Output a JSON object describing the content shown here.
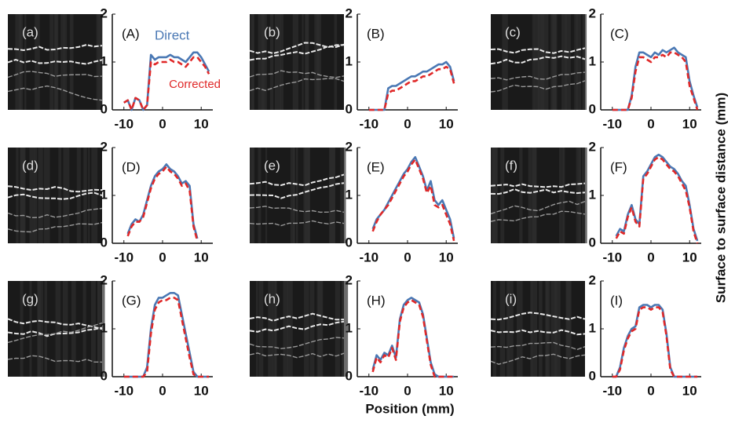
{
  "figure": {
    "x_label": "Position (mm)",
    "y_label": "Surface to surface distance (mm)",
    "images": [
      "(a)",
      "(b)",
      "(c)",
      "(d)",
      "(e)",
      "(f)",
      "(g)",
      "(h)",
      "(i)"
    ]
  },
  "chart_data": [
    {
      "type": "line",
      "label": "(A)",
      "legend": true,
      "xlim": [
        -13,
        13
      ],
      "ylim": [
        0,
        2
      ],
      "xticks": [
        -10,
        0,
        10
      ],
      "yticks": [
        0,
        1,
        2
      ],
      "x": [
        -10,
        -9,
        -8,
        -7,
        -6,
        -5,
        -4,
        -3,
        -2,
        -1,
        0,
        1,
        2,
        3,
        4,
        5,
        6,
        7,
        8,
        9,
        10,
        11,
        12
      ],
      "series": [
        {
          "name": "Direct",
          "color": "#4a78b4",
          "values": [
            0.15,
            0.2,
            0,
            0.25,
            0.2,
            0,
            0.1,
            1.15,
            1.05,
            1.1,
            1.1,
            1.1,
            1.15,
            1.1,
            1.1,
            1.05,
            1.0,
            1.1,
            1.2,
            1.2,
            1.1,
            0.95,
            0.8
          ]
        },
        {
          "name": "Corrected",
          "color": "#e02828",
          "values": [
            0.15,
            0.2,
            0,
            0.25,
            0.2,
            0,
            0.1,
            1.0,
            0.95,
            1.0,
            1.0,
            1.0,
            1.05,
            1.0,
            1.0,
            0.95,
            0.9,
            1.0,
            1.1,
            1.1,
            1.0,
            0.9,
            0.75
          ]
        }
      ]
    },
    {
      "type": "line",
      "label": "(B)",
      "xlim": [
        -13,
        13
      ],
      "ylim": [
        0,
        2
      ],
      "xticks": [
        -10,
        0,
        10
      ],
      "yticks": [
        0,
        1,
        2
      ],
      "x": [
        -10,
        -9,
        -8,
        -7,
        -6,
        -5,
        -4,
        -3,
        -2,
        -1,
        0,
        1,
        2,
        3,
        4,
        5,
        6,
        7,
        8,
        9,
        10,
        11,
        12
      ],
      "series": [
        {
          "name": "Direct",
          "color": "#4a78b4",
          "values": [
            0,
            0,
            0,
            0,
            0,
            0.45,
            0.5,
            0.5,
            0.55,
            0.6,
            0.65,
            0.7,
            0.7,
            0.75,
            0.8,
            0.8,
            0.85,
            0.9,
            0.95,
            0.95,
            1.0,
            0.9,
            0.6
          ]
        },
        {
          "name": "Corrected",
          "color": "#e02828",
          "values": [
            0,
            0,
            0,
            0,
            0,
            0.35,
            0.4,
            0.4,
            0.45,
            0.5,
            0.55,
            0.6,
            0.6,
            0.65,
            0.7,
            0.7,
            0.75,
            0.8,
            0.85,
            0.85,
            0.9,
            0.85,
            0.55
          ]
        }
      ]
    },
    {
      "type": "line",
      "label": "(C)",
      "xlim": [
        -13,
        13
      ],
      "ylim": [
        0,
        2
      ],
      "xticks": [
        -10,
        0,
        10
      ],
      "yticks": [
        0,
        1,
        2
      ],
      "x": [
        -10,
        -9,
        -8,
        -7,
        -6,
        -5,
        -4,
        -3,
        -2,
        -1,
        0,
        1,
        2,
        3,
        4,
        5,
        6,
        7,
        8,
        9,
        10,
        11,
        12
      ],
      "series": [
        {
          "name": "Direct",
          "color": "#4a78b4",
          "values": [
            0,
            0,
            0,
            0,
            0,
            0.3,
            0.9,
            1.2,
            1.2,
            1.15,
            1.1,
            1.2,
            1.15,
            1.25,
            1.2,
            1.25,
            1.3,
            1.2,
            1.15,
            1.1,
            0.6,
            0.3,
            0.05
          ]
        },
        {
          "name": "Corrected",
          "color": "#e02828",
          "values": [
            0,
            0,
            0,
            0,
            0,
            0.25,
            0.8,
            1.1,
            1.1,
            1.05,
            1.0,
            1.1,
            1.1,
            1.15,
            1.1,
            1.2,
            1.2,
            1.15,
            1.1,
            1.0,
            0.5,
            0.25,
            0
          ]
        }
      ]
    },
    {
      "type": "line",
      "label": "(D)",
      "xlim": [
        -13,
        13
      ],
      "ylim": [
        0,
        2
      ],
      "xticks": [
        -10,
        0,
        10
      ],
      "yticks": [
        0,
        1,
        2
      ],
      "x": [
        -10,
        -9,
        -8,
        -7,
        -6,
        -5,
        -4,
        -3,
        -2,
        -1,
        0,
        1,
        2,
        3,
        4,
        5,
        6,
        7,
        8,
        9,
        10,
        11,
        12
      ],
      "series": [
        {
          "name": "Direct",
          "color": "#4a78b4",
          "values": [
            null,
            0.2,
            0.4,
            0.5,
            0.45,
            0.6,
            0.9,
            1.2,
            1.4,
            1.5,
            1.55,
            1.65,
            1.55,
            1.5,
            1.4,
            1.25,
            1.3,
            1.2,
            0.4,
            0.1,
            null,
            null,
            null
          ]
        },
        {
          "name": "Corrected",
          "color": "#e02828",
          "values": [
            null,
            0.15,
            0.35,
            0.45,
            0.45,
            0.55,
            0.85,
            1.15,
            1.35,
            1.45,
            1.5,
            1.6,
            1.5,
            1.45,
            1.35,
            1.2,
            1.25,
            1.1,
            0.35,
            0.05,
            null,
            null,
            null
          ]
        }
      ]
    },
    {
      "type": "line",
      "label": "(E)",
      "xlim": [
        -13,
        13
      ],
      "ylim": [
        0,
        2
      ],
      "xticks": [
        -10,
        0,
        10
      ],
      "yticks": [
        0,
        1,
        2
      ],
      "x": [
        -10,
        -9,
        -8,
        -7,
        -6,
        -5,
        -4,
        -3,
        -2,
        -1,
        0,
        1,
        2,
        3,
        4,
        5,
        6,
        7,
        8,
        9,
        10,
        11,
        12
      ],
      "series": [
        {
          "name": "Direct",
          "color": "#4a78b4",
          "values": [
            null,
            0.3,
            0.5,
            0.6,
            0.7,
            0.85,
            1.0,
            1.15,
            1.3,
            1.45,
            1.55,
            1.7,
            1.8,
            1.6,
            1.4,
            1.1,
            1.3,
            0.9,
            0.8,
            0.9,
            0.7,
            0.5,
            0.1
          ]
        },
        {
          "name": "Corrected",
          "color": "#e02828",
          "values": [
            null,
            0.25,
            0.45,
            0.6,
            0.7,
            0.8,
            0.95,
            1.1,
            1.25,
            1.4,
            1.5,
            1.65,
            1.75,
            1.55,
            1.35,
            1.05,
            1.2,
            0.8,
            0.75,
            0.8,
            0.6,
            0.4,
            0.05
          ]
        }
      ]
    },
    {
      "type": "line",
      "label": "(F)",
      "xlim": [
        -13,
        13
      ],
      "ylim": [
        0,
        2
      ],
      "xticks": [
        -10,
        0,
        10
      ],
      "yticks": [
        0,
        1,
        2
      ],
      "x": [
        -10,
        -9,
        -8,
        -7,
        -6,
        -5,
        -4,
        -3,
        -2,
        -1,
        0,
        1,
        2,
        3,
        4,
        5,
        6,
        7,
        8,
        9,
        10,
        11,
        12
      ],
      "series": [
        {
          "name": "Direct",
          "color": "#4a78b4",
          "values": [
            null,
            0.15,
            0.3,
            0.25,
            0.6,
            0.8,
            0.5,
            0.4,
            1.4,
            1.5,
            1.65,
            1.8,
            1.85,
            1.8,
            1.7,
            1.6,
            1.55,
            1.45,
            1.3,
            1.2,
            0.8,
            0.3,
            0.05
          ]
        },
        {
          "name": "Corrected",
          "color": "#e02828",
          "values": [
            null,
            0.1,
            0.25,
            0.2,
            0.55,
            0.75,
            0.45,
            0.35,
            1.35,
            1.45,
            1.6,
            1.75,
            1.8,
            1.75,
            1.65,
            1.55,
            1.5,
            1.4,
            1.25,
            1.1,
            0.75,
            0.25,
            0
          ]
        }
      ]
    },
    {
      "type": "line",
      "label": "(G)",
      "xlim": [
        -13,
        13
      ],
      "ylim": [
        0,
        2
      ],
      "xticks": [
        -10,
        0,
        10
      ],
      "yticks": [
        0,
        1,
        2
      ],
      "x": [
        -10,
        -9,
        -8,
        -7,
        -6,
        -5,
        -4,
        -3,
        -2,
        -1,
        0,
        1,
        2,
        3,
        4,
        5,
        6,
        7,
        8,
        9,
        10,
        11,
        12
      ],
      "series": [
        {
          "name": "Direct",
          "color": "#4a78b4",
          "values": [
            0,
            0,
            0,
            0,
            0,
            0,
            0.2,
            1.0,
            1.5,
            1.65,
            1.65,
            1.7,
            1.75,
            1.75,
            1.7,
            1.3,
            0.9,
            0.5,
            0.1,
            0,
            0,
            0,
            0
          ]
        },
        {
          "name": "Corrected",
          "color": "#e02828",
          "values": [
            0,
            0,
            0,
            0,
            0,
            0,
            0.1,
            0.9,
            1.4,
            1.55,
            1.6,
            1.6,
            1.65,
            1.65,
            1.6,
            1.2,
            0.8,
            0.4,
            0.05,
            0,
            0,
            0,
            0
          ]
        }
      ]
    },
    {
      "type": "line",
      "label": "(H)",
      "xlim": [
        -13,
        13
      ],
      "ylim": [
        0,
        2
      ],
      "xticks": [
        -10,
        0,
        10
      ],
      "yticks": [
        0,
        1,
        2
      ],
      "x": [
        -10,
        -9,
        -8,
        -7,
        -6,
        -5,
        -4,
        -3,
        -2,
        -1,
        0,
        1,
        2,
        3,
        4,
        5,
        6,
        7,
        8,
        9,
        10,
        11,
        12
      ],
      "series": [
        {
          "name": "Direct",
          "color": "#4a78b4",
          "values": [
            null,
            0.15,
            0.45,
            0.35,
            0.5,
            0.45,
            0.65,
            0.4,
            1.2,
            1.5,
            1.6,
            1.65,
            1.6,
            1.55,
            1.3,
            0.8,
            0.3,
            0.05,
            0,
            0,
            0,
            0,
            0
          ]
        },
        {
          "name": "Corrected",
          "color": "#e02828",
          "values": [
            null,
            0.1,
            0.4,
            0.3,
            0.45,
            0.4,
            0.6,
            0.35,
            1.15,
            1.45,
            1.55,
            1.6,
            1.55,
            1.5,
            1.25,
            0.75,
            0.25,
            0,
            0,
            0,
            0,
            0,
            0
          ]
        }
      ]
    },
    {
      "type": "line",
      "label": "(I)",
      "xlim": [
        -13,
        13
      ],
      "ylim": [
        0,
        2
      ],
      "xticks": [
        -10,
        0,
        10
      ],
      "yticks": [
        0,
        1,
        2
      ],
      "x": [
        -10,
        -9,
        -8,
        -7,
        -6,
        -5,
        -4,
        -3,
        -2,
        -1,
        0,
        1,
        2,
        3,
        4,
        5,
        6,
        7,
        8,
        9,
        10,
        11,
        12
      ],
      "series": [
        {
          "name": "Direct",
          "color": "#4a78b4",
          "values": [
            0,
            0,
            0.2,
            0.6,
            0.85,
            1.0,
            1.05,
            1.45,
            1.5,
            1.5,
            1.45,
            1.5,
            1.5,
            1.4,
            0.9,
            0.2,
            0,
            0,
            0,
            0,
            0,
            0,
            0
          ]
        },
        {
          "name": "Corrected",
          "color": "#e02828",
          "values": [
            0,
            0,
            0.15,
            0.55,
            0.8,
            0.95,
            1.0,
            1.4,
            1.45,
            1.45,
            1.4,
            1.45,
            1.45,
            1.35,
            0.85,
            0.15,
            0,
            0,
            0,
            0,
            0,
            0,
            0
          ]
        }
      ]
    }
  ]
}
